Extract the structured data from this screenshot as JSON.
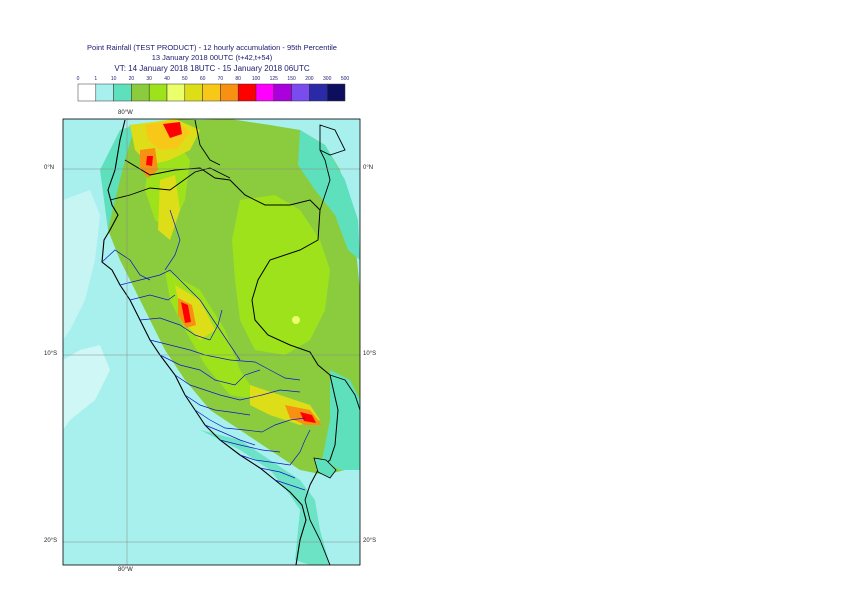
{
  "title": {
    "line1": "Point Rainfall (TEST PRODUCT) - 12 hourly accumulation - 95th Percentile",
    "line2": "13 January 2018 00UTC (t+42,t+54)",
    "line3": "VT: 14 January 2018 18UTC - 15 January 2018 06UTC"
  },
  "legend": {
    "thresholds": [
      "0",
      "1",
      "10",
      "20",
      "30",
      "40",
      "50",
      "60",
      "70",
      "80",
      "100",
      "125",
      "150",
      "200",
      "300",
      "500"
    ],
    "colors": [
      "#ffffff",
      "#a8f0ee",
      "#5ee0bc",
      "#8acc3e",
      "#9ee21c",
      "#eaff6a",
      "#dede18",
      "#f8c818",
      "#f89012",
      "#ff0000",
      "#ff00ff",
      "#aa00dd",
      "#7a4cf0",
      "#2a2aa8",
      "#0e0e5e"
    ]
  },
  "axes": {
    "lon_top": "80°W",
    "lon_bottom": "80°W",
    "lat_labels": [
      "0°N",
      "10°S",
      "20°S"
    ]
  },
  "map_colors": {
    "ocean": "#a8f0ee",
    "teal": "#5ee0bc",
    "green": "#8acc3e",
    "lime": "#9ee21c",
    "yellow": "#dede18",
    "orange": "#f8c818",
    "red": "#ff0000",
    "white": "#ffffff",
    "coast": "#000000",
    "regions": "#1414c8"
  }
}
